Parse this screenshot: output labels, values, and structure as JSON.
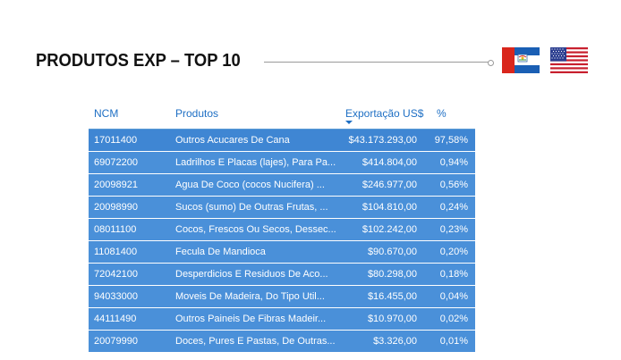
{
  "header": {
    "title": "PRODUTOS EXP – TOP 10"
  },
  "flags": [
    {
      "name": "pernambuco-flag-icon"
    },
    {
      "name": "usa-flag-icon"
    }
  ],
  "table": {
    "columns": [
      "NCM",
      "Produtos",
      "Exportação US$",
      "%"
    ],
    "sorted_column": "Exportação US$",
    "sort_direction": "descending",
    "rows": [
      {
        "ncm": "17011400",
        "produto": "Outros Acucares De Cana",
        "valor": "$43.173.293,00",
        "pct": "97,58%"
      },
      {
        "ncm": "69072200",
        "produto": "Ladrilhos E Placas (lajes), Para Pa...",
        "valor": "$414.804,00",
        "pct": "0,94%"
      },
      {
        "ncm": "20098921",
        "produto": "Agua De Coco (cocos Nucifera) ...",
        "valor": "$246.977,00",
        "pct": "0,56%"
      },
      {
        "ncm": "20098990",
        "produto": "Sucos (sumo) De Outras Frutas, ...",
        "valor": "$104.810,00",
        "pct": "0,24%"
      },
      {
        "ncm": "08011100",
        "produto": "Cocos, Frescos Ou Secos, Dessec...",
        "valor": "$102.242,00",
        "pct": "0,23%"
      },
      {
        "ncm": "11081400",
        "produto": "Fecula De Mandioca",
        "valor": "$90.670,00",
        "pct": "0,20%"
      },
      {
        "ncm": "72042100",
        "produto": "Desperdicios E Residuos De Aco...",
        "valor": "$80.298,00",
        "pct": "0,18%"
      },
      {
        "ncm": "94033000",
        "produto": "Moveis De Madeira, Do Tipo Util...",
        "valor": "$16.455,00",
        "pct": "0,04%"
      },
      {
        "ncm": "44111490",
        "produto": "Outros Paineis De Fibras Madeir...",
        "valor": "$10.970,00",
        "pct": "0,02%"
      },
      {
        "ncm": "20079990",
        "produto": "Doces, Pures E Pastas, De Outras...",
        "valor": "$3.326,00",
        "pct": "0,01%"
      }
    ]
  },
  "colors": {
    "header_text": "#1e6fc4",
    "row_bg": "#4a90d9",
    "row_text": "#ffffff"
  }
}
